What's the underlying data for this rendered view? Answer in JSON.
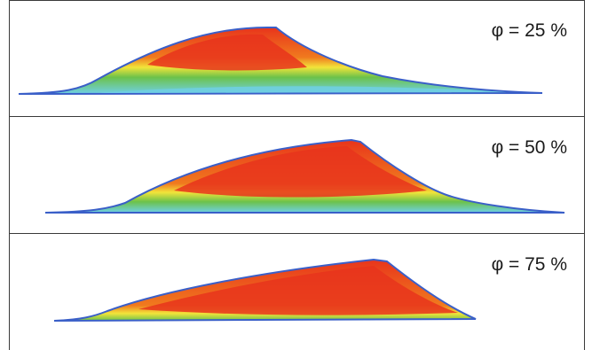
{
  "panels": [
    {
      "label": "φ = 25 %"
    },
    {
      "label": "φ = 50 %"
    },
    {
      "label": "φ = 75 %"
    }
  ],
  "colors": {
    "red": "#e8341c",
    "orange": "#f07a1e",
    "yellow": "#f2e43a",
    "green": "#6cc24a",
    "cyan": "#6fd0e6",
    "blue": "#3a5fc8",
    "magenta": "#c24fb4",
    "frame": "#3a3a3a"
  }
}
